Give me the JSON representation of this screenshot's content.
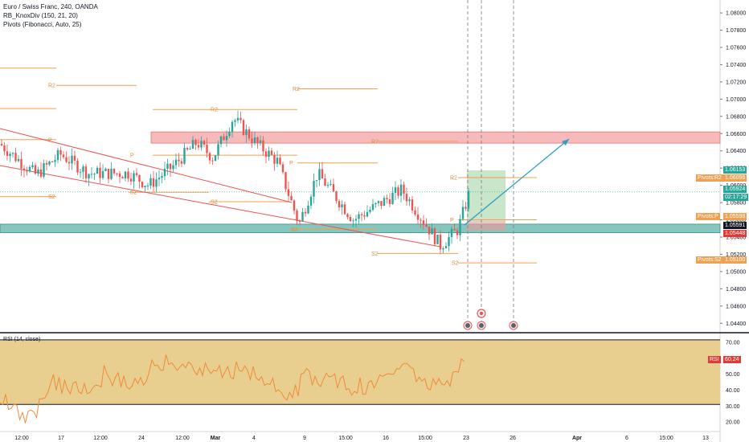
{
  "legend": {
    "symbol": "Euro / Swiss Franc, 240, OANDA",
    "indicator1": "RB_KnoxDiv (150, 21, 20)",
    "indicator2": "Pivots (Fibonacci, Auto, 25)"
  },
  "rsi_legend": "RSI (14, close)",
  "colors": {
    "up": "#26a69a",
    "down": "#ef5350",
    "pivot": "#f0a050",
    "resistance_zone": "#f4a3a3",
    "support_zone": "#5fb3a8",
    "rsi_band": "#e8cf8f",
    "trend_line": "#ef5350",
    "arrow": "#2a9fc9"
  },
  "price_axis": {
    "ticks": [
      "1.08000",
      "1.07800",
      "1.07600",
      "1.07400",
      "1.07200",
      "1.07000",
      "1.06800",
      "1.06600",
      "1.06400",
      "1.06200",
      "1.06000",
      "1.05800",
      "1.05600",
      "1.05400",
      "1.05200",
      "1.05000",
      "1.04800",
      "1.04600",
      "1.04400"
    ],
    "min": 1.043,
    "max": 1.0815
  },
  "rsi_axis": {
    "ticks": [
      "70.00",
      "60.00",
      "50.00",
      "40.00",
      "30.00",
      "20.00"
    ],
    "min": 15,
    "max": 75
  },
  "time_axis": {
    "labels": [
      "12:00",
      "17",
      "12:00",
      "24",
      "12:00",
      "Mar",
      "4",
      "9",
      "15:00",
      "16",
      "15:00",
      "23",
      "26",
      "Apr",
      "6",
      "15:00",
      "13"
    ]
  },
  "tags": {
    "pivot_r2": {
      "label": "Pivots:R2",
      "value": "1.06096"
    },
    "high": {
      "value": "1.06153"
    },
    "last": {
      "value": "1.05924",
      "countdown": "02:17:29"
    },
    "pivot_p": {
      "label": "Pivots:P",
      "value": "1.05598"
    },
    "p2": {
      "value": "1.05591"
    },
    "low": {
      "value": "1.05448"
    },
    "pivot_s2": {
      "label": "Pivots:S2",
      "value": "1.05100"
    },
    "rsi": {
      "label": "RSI",
      "value": "60.24"
    }
  },
  "pivot_labels": {
    "r2": "R2",
    "p": "P",
    "s2": "S2"
  },
  "chart_data": {
    "type": "candlestick",
    "instrument": "Euro / Swiss Franc",
    "interval": "240",
    "price_range": [
      1.043,
      1.0815
    ],
    "resistance_zone": [
      1.0649,
      1.0662
    ],
    "support_zone": [
      1.0545,
      1.0555
    ],
    "pivots": [
      {
        "name": "R2",
        "value": 1.0711
      },
      {
        "name": "R2",
        "value": 1.0705
      },
      {
        "name": "R2",
        "value": 1.0688
      },
      {
        "name": "R2",
        "value": 1.0653
      },
      {
        "name": "R2",
        "value": 1.0609
      },
      {
        "name": "P",
        "value": 1.0657
      },
      {
        "name": "P",
        "value": 1.0621
      },
      {
        "name": "P",
        "value": 1.0618
      },
      {
        "name": "P",
        "value": 1.06
      },
      {
        "name": "P",
        "value": 1.056
      },
      {
        "name": "S2",
        "value": 1.0581
      },
      {
        "name": "S2",
        "value": 1.0586
      },
      {
        "name": "S2",
        "value": 1.0573
      },
      {
        "name": "S2",
        "value": 1.0552
      },
      {
        "name": "S2",
        "value": 1.0521
      },
      {
        "name": "S2",
        "value": 1.051
      }
    ],
    "last_price": 1.05924,
    "rsi_last": 60.24
  }
}
